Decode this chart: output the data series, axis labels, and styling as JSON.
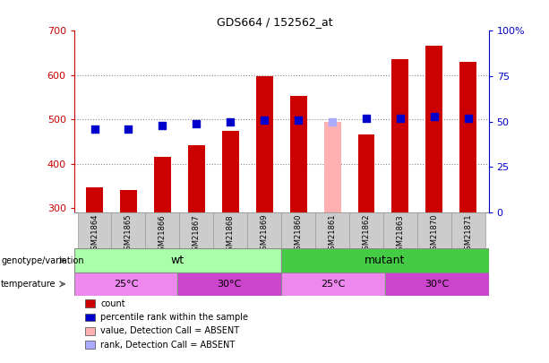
{
  "title": "GDS664 / 152562_at",
  "samples": [
    "GSM21864",
    "GSM21865",
    "GSM21866",
    "GSM21867",
    "GSM21868",
    "GSM21869",
    "GSM21860",
    "GSM21861",
    "GSM21862",
    "GSM21863",
    "GSM21870",
    "GSM21871"
  ],
  "counts": [
    347,
    340,
    415,
    442,
    475,
    597,
    554,
    null,
    467,
    637,
    667,
    630
  ],
  "absent_count": [
    null,
    null,
    null,
    null,
    null,
    null,
    null,
    495,
    null,
    null,
    null,
    null
  ],
  "percentile_ranks": [
    46,
    46,
    48,
    49,
    50,
    51,
    51,
    null,
    52,
    52,
    53,
    52
  ],
  "absent_rank": [
    null,
    null,
    null,
    null,
    null,
    null,
    null,
    50,
    null,
    null,
    null,
    null
  ],
  "ylim": [
    290,
    700
  ],
  "y2lim": [
    0,
    100
  ],
  "yticks": [
    300,
    400,
    500,
    600,
    700
  ],
  "y2ticks": [
    0,
    25,
    50,
    75,
    100
  ],
  "bar_color": "#cc0000",
  "absent_bar_color": "#ffb0b0",
  "rank_color": "#0000cc",
  "absent_rank_color": "#aaaaff",
  "ylabel_color": "#cc0000",
  "y2label_color": "#0000cc",
  "genotype_wt_color": "#aaffaa",
  "genotype_mutant_color": "#44cc44",
  "temp_25_color": "#ee88ee",
  "temp_30_color": "#cc44cc",
  "legend_items": [
    {
      "label": "count",
      "color": "#cc0000"
    },
    {
      "label": "percentile rank within the sample",
      "color": "#0000cc"
    },
    {
      "label": "value, Detection Call = ABSENT",
      "color": "#ffb0b0"
    },
    {
      "label": "rank, Detection Call = ABSENT",
      "color": "#aaaaff"
    }
  ],
  "bar_width": 0.5,
  "rank_marker_size": 40
}
